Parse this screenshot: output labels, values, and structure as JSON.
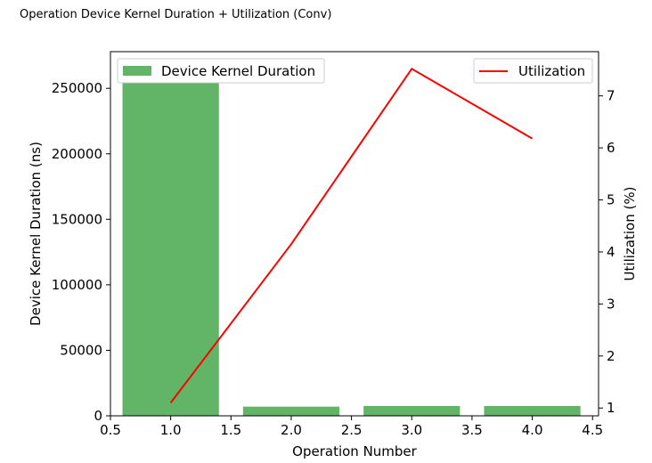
{
  "page": {
    "title": "Operation Device Kernel Duration + Utilization (Conv)"
  },
  "chart_data": {
    "type": "bar",
    "xlabel": "Operation Number",
    "ylabel_left": "Device Kernel Duration (ns)",
    "ylabel_right": "Utilization (%)",
    "xlim": [
      0.5,
      4.55
    ],
    "ylim_left": [
      0,
      278000
    ],
    "ylim_right": [
      0.85,
      7.85
    ],
    "x_ticks": [
      "0.5",
      "1.0",
      "1.5",
      "2.0",
      "2.5",
      "3.0",
      "3.5",
      "4.0",
      "4.5"
    ],
    "y_left_ticks": [
      "0",
      "50000",
      "100000",
      "150000",
      "200000",
      "250000"
    ],
    "y_right_ticks": [
      "1",
      "2",
      "3",
      "4",
      "5",
      "6",
      "7"
    ],
    "bar_series": {
      "name": "Device Kernel Duration",
      "color": "#62b466",
      "x": [
        1,
        2,
        3,
        4
      ],
      "values": [
        269000,
        7000,
        7500,
        7500
      ],
      "bar_width": 0.8
    },
    "line_series": {
      "name": "Utilization",
      "color": "#ff0000",
      "x": [
        1,
        2,
        3,
        4
      ],
      "values": [
        1.1,
        4.15,
        7.52,
        6.18
      ]
    },
    "legend_left_position": "top-left",
    "legend_right_position": "top-right",
    "grid": false
  }
}
